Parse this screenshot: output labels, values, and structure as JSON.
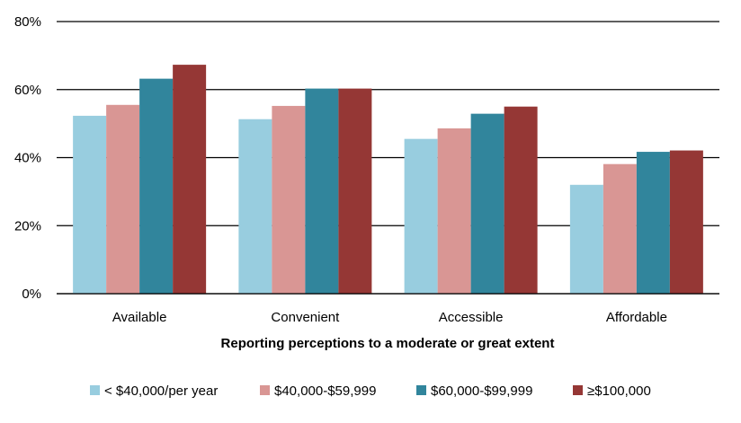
{
  "chart_data": {
    "type": "bar",
    "title": "",
    "xlabel": "Reporting perceptions to a moderate or great extent",
    "ylabel": "",
    "categories": [
      "Available",
      "Convenient",
      "Accessible",
      "Affordable"
    ],
    "series": [
      {
        "name": "< $40,000/per year",
        "color": "#98cddf",
        "values": [
          52.3,
          51.3,
          45.5,
          32.0
        ]
      },
      {
        "name": "$40,000-$59,999",
        "color": "#d99694",
        "values": [
          55.5,
          55.2,
          48.6,
          38.1
        ]
      },
      {
        "name": "$60,000-$99,999",
        "color": "#31859c",
        "values": [
          63.2,
          60.3,
          52.9,
          41.7
        ]
      },
      {
        "name": "≥$100,000",
        "color": "#953735",
        "values": [
          67.3,
          60.3,
          55.0,
          42.1
        ]
      }
    ],
    "ylim": [
      0,
      80
    ],
    "yticks": [
      0,
      20,
      40,
      60,
      80
    ],
    "ytick_labels": [
      "0%",
      "20%",
      "40%",
      "60%",
      "80%"
    ],
    "grid": true,
    "legend_position": "bottom"
  }
}
